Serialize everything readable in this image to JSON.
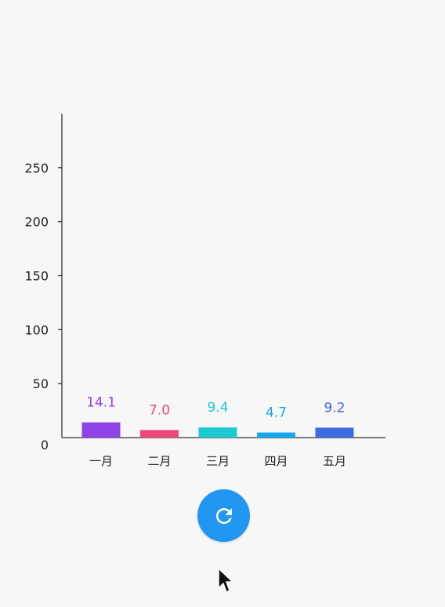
{
  "chart_data": {
    "type": "bar",
    "categories": [
      "一月",
      "二月",
      "三月",
      "四月",
      "五月"
    ],
    "values": [
      14.1,
      7.0,
      9.4,
      4.7,
      9.2
    ],
    "value_labels": [
      "14.1",
      "7.0",
      "9.4",
      "4.7",
      "9.2"
    ],
    "colors": [
      "#8e44e6",
      "#f0457b",
      "#1ec9d2",
      "#14a8f2",
      "#3b6de1"
    ],
    "ylim": [
      0,
      300
    ],
    "yticks": [
      0,
      50,
      100,
      150,
      200,
      250
    ],
    "title": "",
    "xlabel": "",
    "ylabel": "",
    "grid": false,
    "legend": "none"
  },
  "controls": {
    "refresh_icon": "refresh-icon",
    "refresh_color": "#2196f3"
  },
  "cursor_icon": "arrow-cursor-icon"
}
